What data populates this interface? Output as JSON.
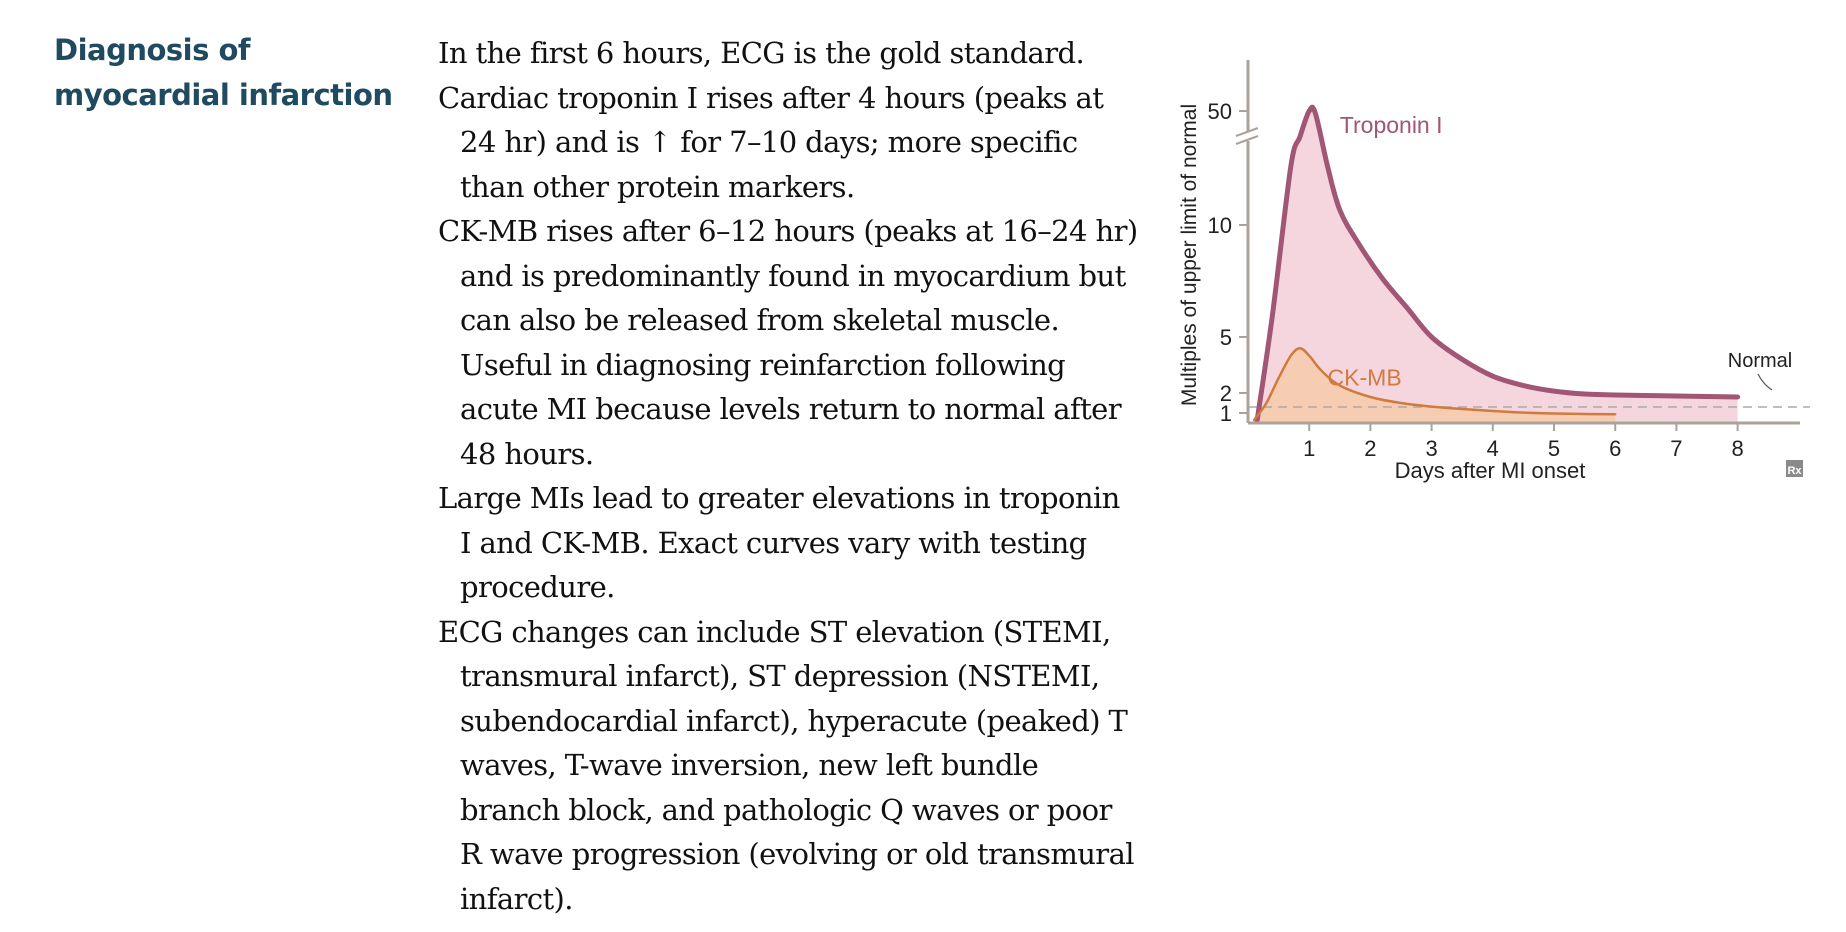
{
  "heading": {
    "line1": "Diagnosis of",
    "line2": "myocardial infarction"
  },
  "paragraphs": [
    "In the first 6 hours, ECG is the gold standard.",
    "Cardiac troponin I rises after 4 hours (peaks at 24 hr) and is ↑ for 7–10 days; more specific than other protein markers.",
    "CK-MB rises after 6–12 hours (peaks at 16–24 hr) and is predominantly found in myocardium but can also be released from skeletal muscle. Useful in diagnosing reinfarction following acute MI because levels return to normal after 48 hours.",
    "Large MIs lead to greater elevations in troponin I and CK-MB. Exact curves vary with testing procedure.",
    "ECG changes can include ST elevation (STEMI, transmural infarct), ST depression (NSTEMI, subendocardial infarct), hyperacute (peaked) T waves, T-wave inversion, new left bundle branch block, and pathologic Q waves or poor R wave progression (evolving or old transmural infarct)."
  ],
  "chart_data": {
    "type": "area",
    "xlabel": "Days after MI onset",
    "ylabel": "Multiples of upper limit of normal",
    "xlim": [
      0,
      8.5
    ],
    "x_ticks": [
      1,
      2,
      3,
      4,
      5,
      6,
      7,
      8
    ],
    "y_ticks": [
      1,
      2,
      5,
      10,
      50
    ],
    "y_axis_break": true,
    "normal_level": 1.3,
    "normal_label": "Normal",
    "badge": "Rx",
    "series": [
      {
        "name": "Troponin I",
        "color": "#a15675",
        "fill": "#f5d6df",
        "x": [
          0.15,
          0.4,
          0.7,
          0.85,
          1.0,
          1.1,
          1.3,
          1.5,
          1.8,
          2.2,
          2.6,
          3.0,
          3.5,
          4.0,
          4.5,
          5.0,
          5.5,
          6.0,
          7.0,
          8.0
        ],
        "y": [
          0.3,
          6,
          24,
          38,
          50,
          49,
          24,
          13,
          9.2,
          7.6,
          6.3,
          5.0,
          3.8,
          2.9,
          2.4,
          2.1,
          1.95,
          1.9,
          1.85,
          1.8
        ]
      },
      {
        "name": "CK-MB",
        "color": "#d07b3e",
        "fill": "#f6c9a4",
        "x": [
          0.1,
          0.3,
          0.5,
          0.7,
          0.85,
          1.0,
          1.2,
          1.5,
          2.0,
          2.5,
          3.0,
          3.5,
          4.0,
          4.5,
          5.0,
          5.5,
          6.0
        ],
        "y": [
          0.3,
          1.5,
          2.8,
          4.0,
          4.4,
          4.0,
          3.2,
          2.4,
          1.8,
          1.5,
          1.32,
          1.2,
          1.1,
          1.02,
          0.95,
          0.9,
          0.88
        ]
      }
    ]
  }
}
